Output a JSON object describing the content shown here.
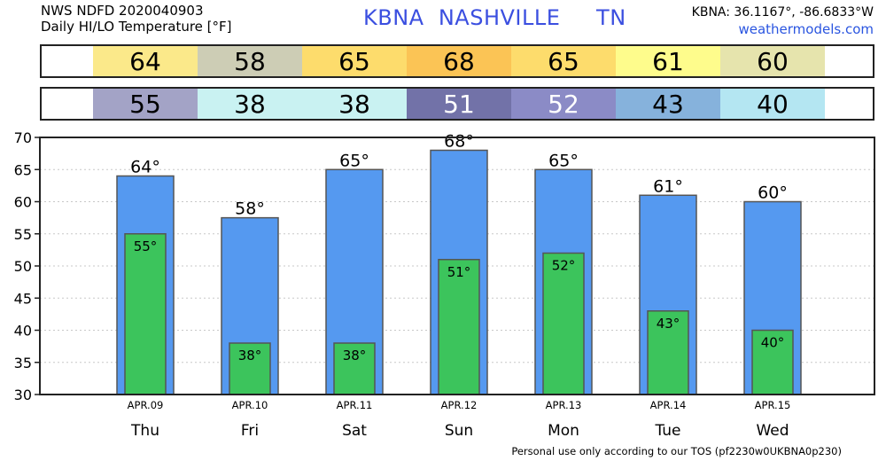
{
  "header": {
    "line1": "NWS NDFD 2020040903",
    "line2": "Daily HI/LO Temperature [°F]",
    "station": "KBNA  NASHVILLE     TN",
    "coords": "KBNA: 36.1167°, -86.6833°W",
    "site": "weathermodels.com"
  },
  "footer": "Personal use only according to our TOS (pf2230w0UKBNA0p230)",
  "colors": {
    "high_bar": "#5599f0",
    "low_bar": "#3cc45c",
    "hi_strip": [
      "#fbe98a",
      "#cdcdb5",
      "#fddc6c",
      "#fbc455",
      "#fddc6c",
      "#fefc8c",
      "#e6e4ad"
    ],
    "lo_strip": [
      "#a3a3c6",
      "#c9f2f2",
      "#c9f2f2",
      "#7272a8",
      "#8b8bc6",
      "#86b2dc",
      "#b4e6f2"
    ],
    "lo_strip_text": [
      "#000000",
      "#000000",
      "#000000",
      "#ffffff",
      "#ffffff",
      "#000000",
      "#000000"
    ]
  },
  "chart_data": {
    "type": "bar",
    "categories": [
      "Thu",
      "Fri",
      "Sat",
      "Sun",
      "Mon",
      "Tue",
      "Wed"
    ],
    "dates": [
      "APR.09",
      "APR.10",
      "APR.11",
      "APR.12",
      "APR.13",
      "APR.14",
      "APR.15"
    ],
    "series": [
      {
        "values": [
          64,
          57.5,
          65,
          68,
          65,
          61,
          60
        ]
      },
      {
        "values": [
          55,
          38,
          38,
          51,
          52,
          43,
          40
        ]
      }
    ],
    "high_labels": [
      "64°",
      "58°",
      "65°",
      "68°",
      "65°",
      "61°",
      "60°"
    ],
    "low_labels": [
      "55°",
      "38°",
      "38°",
      "51°",
      "52°",
      "43°",
      "40°"
    ],
    "high_strip": [
      "64",
      "58",
      "65",
      "68",
      "65",
      "61",
      "60"
    ],
    "low_strip": [
      "55",
      "38",
      "38",
      "51",
      "52",
      "43",
      "40"
    ],
    "ylim": [
      30,
      70
    ],
    "yticks": [
      30,
      35,
      40,
      45,
      50,
      55,
      60,
      65,
      70
    ],
    "grid": true,
    "title": "",
    "xlabel": "",
    "ylabel": ""
  }
}
